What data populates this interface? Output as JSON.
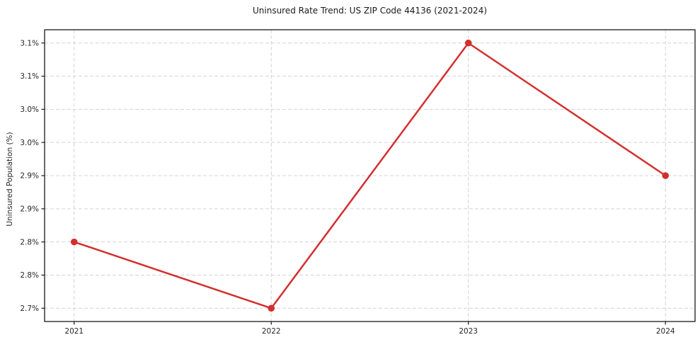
{
  "chart_data": {
    "type": "line",
    "title": "Uninsured Rate Trend: US ZIP Code 44136 (2021-2024)",
    "xlabel": "",
    "ylabel": "Uninsured Population (%)",
    "x": [
      2021,
      2022,
      2023,
      2024
    ],
    "values": [
      2.8,
      2.7,
      3.1,
      2.9
    ],
    "x_tick_labels": [
      "2021",
      "2022",
      "2023",
      "2024"
    ],
    "y_ticks": [
      2.7,
      2.75,
      2.8,
      2.85,
      2.9,
      2.95,
      3.0,
      3.05,
      3.1
    ],
    "y_tick_labels": [
      "2.7%",
      "2.8%",
      "2.8%",
      "2.9%",
      "2.9%",
      "3.0%",
      "3.0%",
      "3.1%",
      "3.1%"
    ],
    "xlim": [
      2020.85,
      2024.15
    ],
    "ylim": [
      2.68,
      3.12
    ],
    "grid": true,
    "grid_style": "dashed",
    "legend_position": "none",
    "colors": {
      "line": "#d32f2f",
      "marker": "#d32f2f",
      "grid": "#d4d4d4",
      "spine": "#1a1a1a",
      "tick_text": "#262626",
      "background": "#ffffff"
    }
  }
}
